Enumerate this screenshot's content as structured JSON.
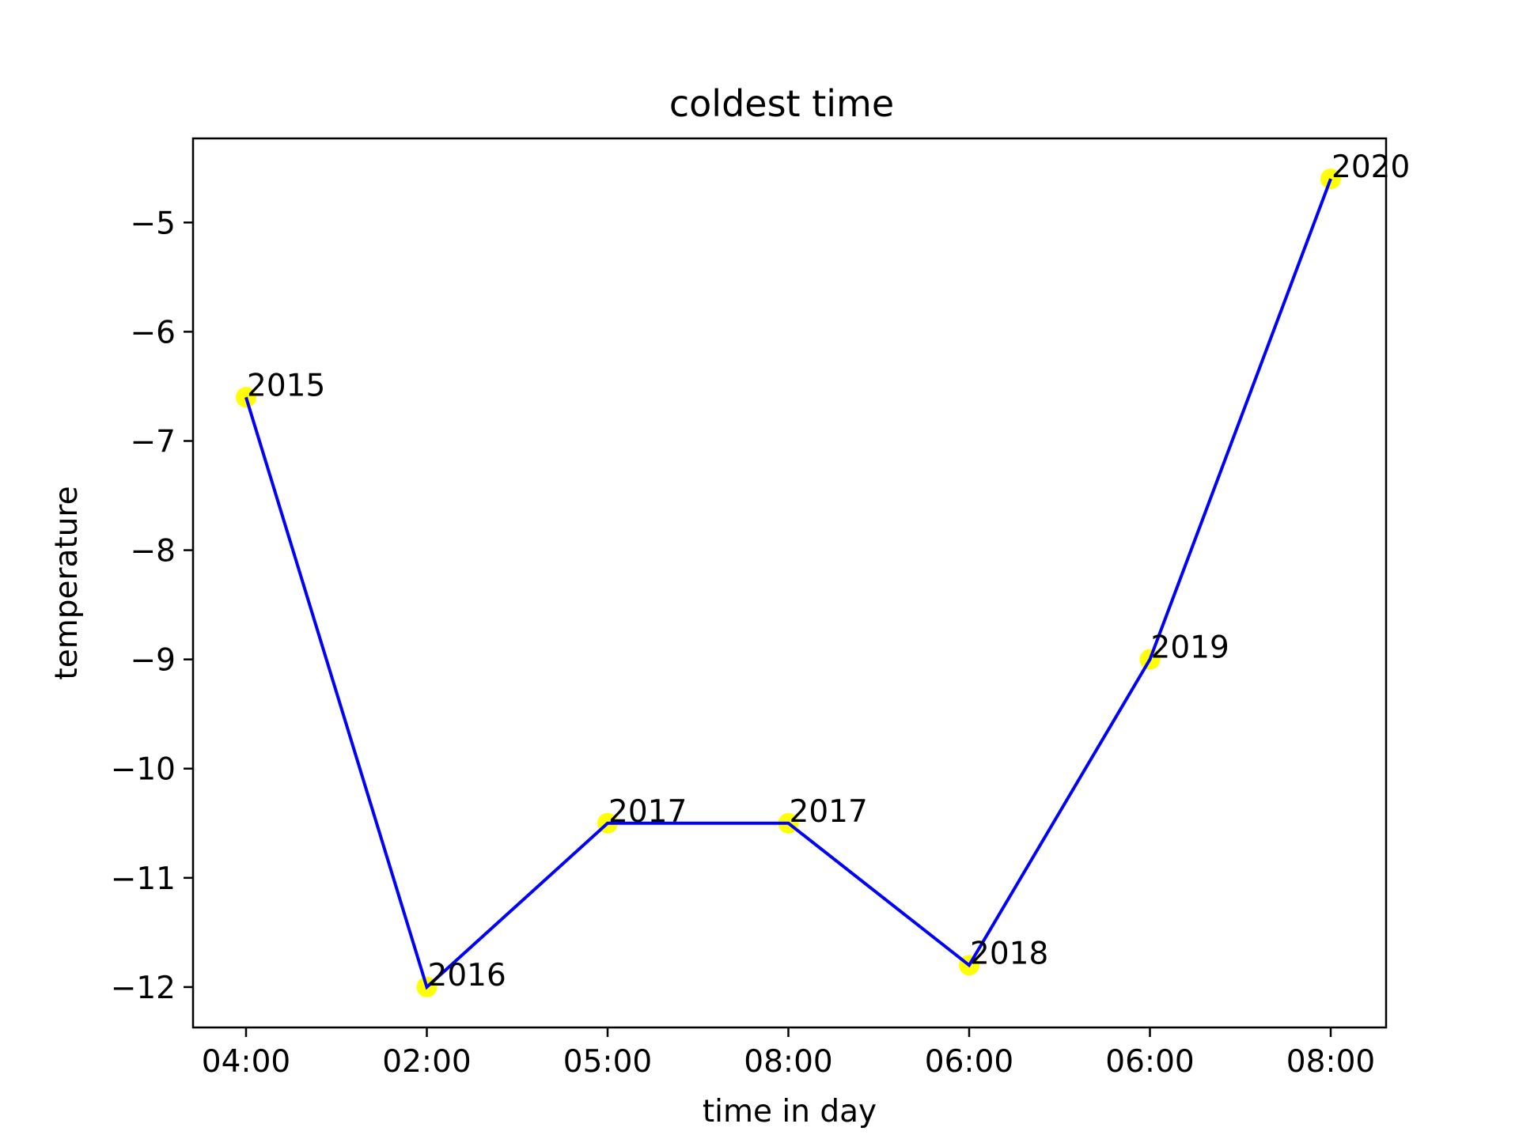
{
  "chart_data": {
    "type": "line",
    "title": "coldest time",
    "xlabel": "time in day",
    "ylabel": "temperature",
    "categories": [
      "04:00",
      "02:00",
      "05:00",
      "08:00",
      "06:00",
      "06:00",
      "08:00"
    ],
    "series": [
      {
        "values": [
          -6.6,
          -12.0,
          -10.5,
          -10.5,
          -11.8,
          -9.0,
          -4.6
        ],
        "point_labels": [
          "2015",
          "2016",
          "2017",
          "2017",
          "2018",
          "2019",
          "2020"
        ],
        "line_color": "#0000ff",
        "marker_color": "#ffff00"
      }
    ],
    "ylim": [
      -12.37,
      -4.23
    ],
    "yticks": [
      -12,
      -11,
      -10,
      -9,
      -8,
      -7,
      -6,
      -5
    ],
    "ytick_labels": [
      "−12",
      "−11",
      "−10",
      "−9",
      "−8",
      "−7",
      "−6",
      "−5"
    ],
    "grid": false,
    "legend": "none"
  }
}
